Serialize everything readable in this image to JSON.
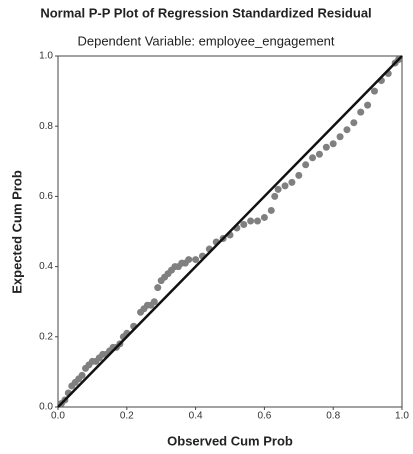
{
  "chart_data": {
    "type": "scatter",
    "title": "Normal P-P Plot of Regression Standardized Residual",
    "subtitle": "Dependent Variable: employee_engagement",
    "x_label": "Observed Cum Prob",
    "y_label": "Expected Cum Prob",
    "color": "#808080",
    "x": [
      0.01,
      0.02,
      0.03,
      0.04,
      0.05,
      0.06,
      0.07,
      0.08,
      0.09,
      0.1,
      0.11,
      0.12,
      0.13,
      0.14,
      0.15,
      0.16,
      0.17,
      0.18,
      0.19,
      0.2,
      0.22,
      0.24,
      0.25,
      0.26,
      0.27,
      0.28,
      0.29,
      0.3,
      0.31,
      0.32,
      0.33,
      0.34,
      0.35,
      0.36,
      0.37,
      0.38,
      0.4,
      0.42,
      0.44,
      0.46,
      0.48,
      0.5,
      0.52,
      0.54,
      0.56,
      0.58,
      0.6,
      0.62,
      0.63,
      0.64,
      0.66,
      0.68,
      0.7,
      0.72,
      0.74,
      0.76,
      0.78,
      0.8,
      0.82,
      0.84,
      0.86,
      0.88,
      0.9,
      0.92,
      0.94,
      0.96,
      0.98,
      0.99
    ],
    "values": [
      0.01,
      0.02,
      0.04,
      0.06,
      0.07,
      0.08,
      0.09,
      0.11,
      0.12,
      0.13,
      0.13,
      0.14,
      0.15,
      0.15,
      0.16,
      0.17,
      0.17,
      0.18,
      0.2,
      0.21,
      0.23,
      0.27,
      0.28,
      0.29,
      0.29,
      0.3,
      0.34,
      0.36,
      0.37,
      0.38,
      0.39,
      0.4,
      0.4,
      0.41,
      0.41,
      0.42,
      0.42,
      0.43,
      0.45,
      0.47,
      0.48,
      0.49,
      0.51,
      0.52,
      0.53,
      0.53,
      0.54,
      0.56,
      0.6,
      0.62,
      0.63,
      0.64,
      0.66,
      0.69,
      0.71,
      0.72,
      0.74,
      0.75,
      0.77,
      0.79,
      0.81,
      0.84,
      0.86,
      0.9,
      0.93,
      0.95,
      0.98,
      0.99
    ],
    "xlim": [
      0,
      1
    ],
    "ylim": [
      0,
      1
    ],
    "xticks": [
      {
        "value": 0,
        "label": "0.0"
      },
      0.2,
      0.4,
      0.6,
      0.8,
      {
        "value": 1,
        "label": "1.0"
      }
    ],
    "yticks": [
      {
        "value": 0,
        "label": "0.0"
      },
      0.2,
      0.4,
      0.6,
      0.8,
      {
        "value": 1,
        "label": "1.0"
      }
    ]
  }
}
